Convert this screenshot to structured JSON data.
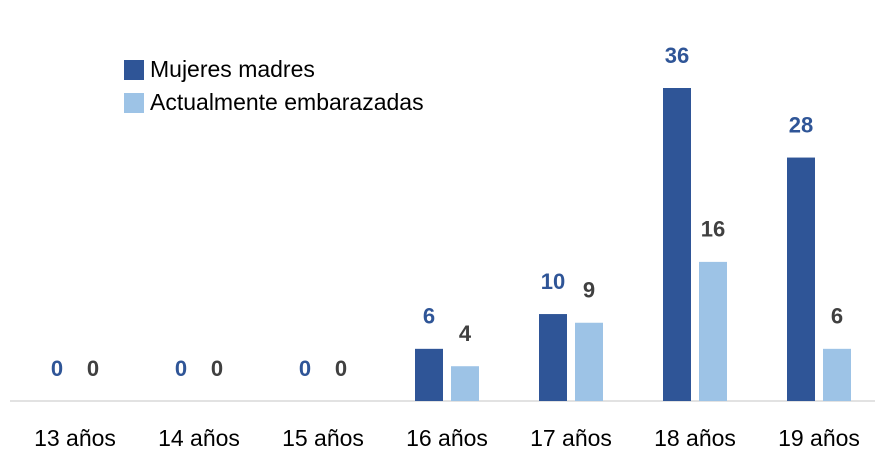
{
  "chart_data": {
    "type": "bar",
    "categories": [
      "13 años",
      "14 años",
      "15 años",
      "16 años",
      "17 años",
      "18 años",
      "19 años"
    ],
    "series": [
      {
        "name": "Mujeres madres",
        "color": "#2f5597",
        "label_color": "#2f5597",
        "values": [
          0,
          0,
          0,
          6,
          10,
          36,
          28
        ]
      },
      {
        "name": "Actualmente embarazadas",
        "color": "#9dc3e6",
        "label_color": "#404040",
        "values": [
          0,
          0,
          0,
          4,
          9,
          16,
          6
        ]
      }
    ],
    "legend": "top-left"
  }
}
